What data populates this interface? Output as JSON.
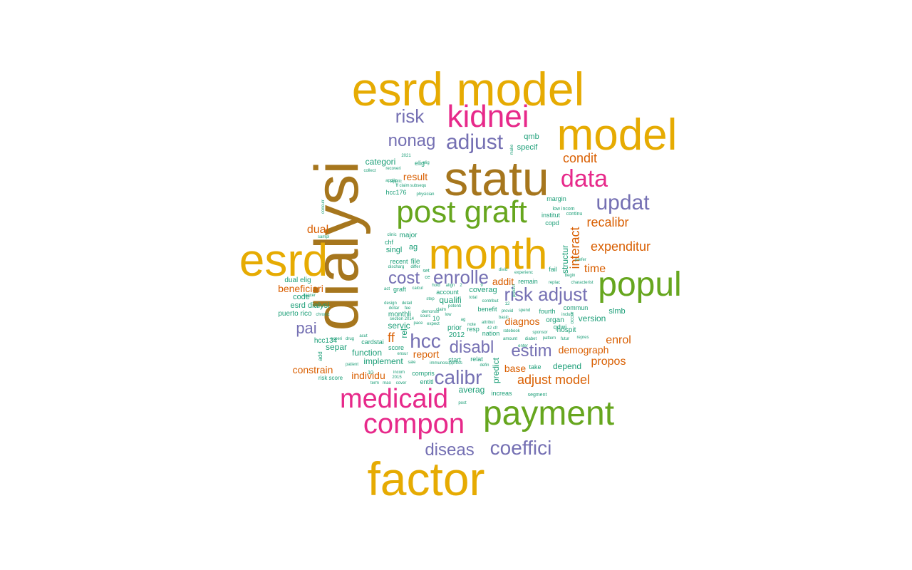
{
  "colors": {
    "gold": "#E6AB02",
    "olive": "#A6761D",
    "magenta": "#E7298A",
    "green": "#66A61E",
    "purple": "#7570B3",
    "orange": "#D95F02",
    "teal": "#1B9E77"
  },
  "words": [
    {
      "text": "esrd model",
      "color": "gold"
    },
    {
      "text": "model",
      "color": "gold"
    },
    {
      "text": "statu",
      "color": "olive"
    },
    {
      "text": "dialysi",
      "color": "olive"
    },
    {
      "text": "kidnei",
      "color": "magenta"
    },
    {
      "text": "month",
      "color": "gold"
    },
    {
      "text": "esrd",
      "color": "gold"
    },
    {
      "text": "factor",
      "color": "gold"
    },
    {
      "text": "post graft",
      "color": "green"
    },
    {
      "text": "payment",
      "color": "green"
    },
    {
      "text": "popul",
      "color": "green"
    },
    {
      "text": "data",
      "color": "magenta"
    },
    {
      "text": "compon",
      "color": "magenta"
    },
    {
      "text": "medicaid",
      "color": "magenta"
    },
    {
      "text": "risk",
      "color": "purple"
    },
    {
      "text": "nonag",
      "color": "purple"
    },
    {
      "text": "adjust",
      "color": "purple"
    },
    {
      "text": "updat",
      "color": "purple"
    },
    {
      "text": "cost",
      "color": "purple"
    },
    {
      "text": "enrolle",
      "color": "purple"
    },
    {
      "text": "risk adjust",
      "color": "purple"
    },
    {
      "text": "hcc",
      "color": "purple"
    },
    {
      "text": "disabl",
      "color": "purple"
    },
    {
      "text": "estim",
      "color": "purple"
    },
    {
      "text": "calibr",
      "color": "purple"
    },
    {
      "text": "diseas",
      "color": "purple"
    },
    {
      "text": "coeffici",
      "color": "purple"
    },
    {
      "text": "pai",
      "color": "purple"
    },
    {
      "text": "interact",
      "color": "orange"
    },
    {
      "text": "condit",
      "color": "orange"
    },
    {
      "text": "recalibr",
      "color": "orange"
    },
    {
      "text": "expenditur",
      "color": "orange"
    },
    {
      "text": "time",
      "color": "orange"
    },
    {
      "text": "result",
      "color": "orange"
    },
    {
      "text": "dual",
      "color": "orange"
    },
    {
      "text": "beneficiari",
      "color": "orange"
    },
    {
      "text": "ff",
      "color": "orange"
    },
    {
      "text": "addit",
      "color": "orange"
    },
    {
      "text": "diagnos",
      "color": "orange"
    },
    {
      "text": "demograph",
      "color": "orange"
    },
    {
      "text": "enrol",
      "color": "orange"
    },
    {
      "text": "propos",
      "color": "orange"
    },
    {
      "text": "report",
      "color": "orange"
    },
    {
      "text": "constrain",
      "color": "orange"
    },
    {
      "text": "individu",
      "color": "orange"
    },
    {
      "text": "base",
      "color": "orange"
    },
    {
      "text": "adjust model",
      "color": "orange"
    },
    {
      "text": "qmb",
      "color": "teal"
    },
    {
      "text": "specif",
      "color": "teal"
    },
    {
      "text": "categori",
      "color": "teal"
    },
    {
      "text": "elig",
      "color": "teal"
    },
    {
      "text": "hcc176",
      "color": "teal"
    },
    {
      "text": "margin",
      "color": "teal"
    },
    {
      "text": "institut",
      "color": "teal"
    },
    {
      "text": "copd",
      "color": "teal"
    },
    {
      "text": "major",
      "color": "teal"
    },
    {
      "text": "ag",
      "color": "teal"
    },
    {
      "text": "singl",
      "color": "teal"
    },
    {
      "text": "chf",
      "color": "teal"
    },
    {
      "text": "file",
      "color": "teal"
    },
    {
      "text": "recent",
      "color": "teal"
    },
    {
      "text": "structur",
      "color": "teal"
    },
    {
      "text": "dual elig",
      "color": "teal"
    },
    {
      "text": "code",
      "color": "teal"
    },
    {
      "text": "graft",
      "color": "teal"
    },
    {
      "text": "esrd dialysi",
      "color": "teal"
    },
    {
      "text": "puerto rico",
      "color": "teal"
    },
    {
      "text": "account",
      "color": "teal"
    },
    {
      "text": "qualifi",
      "color": "teal"
    },
    {
      "text": "coverag",
      "color": "teal"
    },
    {
      "text": "remain",
      "color": "teal"
    },
    {
      "text": "fourth",
      "color": "teal"
    },
    {
      "text": "commun",
      "color": "teal"
    },
    {
      "text": "version",
      "color": "teal"
    },
    {
      "text": "benefit",
      "color": "teal"
    },
    {
      "text": "monthli",
      "color": "teal"
    },
    {
      "text": "servic",
      "color": "teal"
    },
    {
      "text": "prior",
      "color": "teal"
    },
    {
      "text": "2012",
      "color": "teal"
    },
    {
      "text": "nation",
      "color": "teal"
    },
    {
      "text": "organ",
      "color": "teal"
    },
    {
      "text": "hospit",
      "color": "teal"
    },
    {
      "text": "slmb",
      "color": "teal"
    },
    {
      "text": "qdwi",
      "color": "teal"
    },
    {
      "text": "hcc134",
      "color": "teal"
    },
    {
      "text": "separ",
      "color": "teal"
    },
    {
      "text": "cardstai",
      "color": "teal"
    },
    {
      "text": "score",
      "color": "teal"
    },
    {
      "text": "function",
      "color": "teal"
    },
    {
      "text": "implement",
      "color": "teal"
    },
    {
      "text": "relat",
      "color": "teal"
    },
    {
      "text": "start",
      "color": "teal"
    },
    {
      "text": "predict",
      "color": "teal"
    },
    {
      "text": "take",
      "color": "teal"
    },
    {
      "text": "depend",
      "color": "teal"
    },
    {
      "text": "compris",
      "color": "teal"
    },
    {
      "text": "entitl",
      "color": "teal"
    },
    {
      "text": "averag",
      "color": "teal"
    },
    {
      "text": "increas",
      "color": "teal"
    },
    {
      "text": "segment",
      "color": "teal"
    },
    {
      "text": "risk score",
      "color": "teal"
    },
    {
      "text": "add",
      "color": "teal"
    },
    {
      "text": "10",
      "color": "teal"
    },
    {
      "text": "resp",
      "color": "teal"
    },
    {
      "text": "rel",
      "color": "teal"
    },
    {
      "text": "10",
      "color": "teal"
    },
    {
      "text": "low incom",
      "color": "teal"
    },
    {
      "text": "continu",
      "color": "teal"
    },
    {
      "text": "2021",
      "color": "teal"
    },
    {
      "text": "recoveri",
      "color": "teal"
    },
    {
      "text": "collect",
      "color": "teal"
    },
    {
      "text": "applic",
      "color": "teal"
    },
    {
      "text": "ff claim",
      "color": "teal"
    },
    {
      "text": "subsequ",
      "color": "teal"
    },
    {
      "text": "physician",
      "color": "teal"
    },
    {
      "text": "concurr",
      "color": "teal"
    },
    {
      "text": "sampl",
      "color": "teal"
    },
    {
      "text": "clinic",
      "color": "teal"
    },
    {
      "text": "discharg",
      "color": "teal"
    },
    {
      "text": "differ",
      "color": "teal"
    },
    {
      "text": "set",
      "color": "teal"
    },
    {
      "text": "divid",
      "color": "teal"
    },
    {
      "text": "experienc",
      "color": "teal"
    },
    {
      "text": "replac",
      "color": "teal"
    },
    {
      "text": "characterist",
      "color": "teal"
    },
    {
      "text": "prefer",
      "color": "teal"
    },
    {
      "text": "begin",
      "color": "teal"
    },
    {
      "text": "cancer",
      "color": "teal"
    },
    {
      "text": "chronic",
      "color": "teal"
    },
    {
      "text": "act",
      "color": "teal"
    },
    {
      "text": "design",
      "color": "teal"
    },
    {
      "text": "detail",
      "color": "teal"
    },
    {
      "text": "dollar",
      "color": "teal"
    },
    {
      "text": "fee",
      "color": "teal"
    },
    {
      "text": "section 2014",
      "color": "teal"
    },
    {
      "text": "pace",
      "color": "teal"
    },
    {
      "text": "expect",
      "color": "teal"
    },
    {
      "text": "experi",
      "color": "teal"
    },
    {
      "text": "drug",
      "color": "teal"
    },
    {
      "text": "acut",
      "color": "teal"
    },
    {
      "text": "ensur",
      "color": "teal"
    },
    {
      "text": "sale",
      "color": "teal"
    },
    {
      "text": "immunosuppress",
      "color": "teal"
    },
    {
      "text": "defin",
      "color": "teal"
    },
    {
      "text": "patient",
      "color": "teal"
    },
    {
      "text": "2015",
      "color": "teal"
    },
    {
      "text": "incom",
      "color": "teal"
    },
    {
      "text": "term",
      "color": "teal"
    },
    {
      "text": "mao",
      "color": "teal"
    },
    {
      "text": "cover",
      "color": "teal"
    },
    {
      "text": "post",
      "color": "teal"
    },
    {
      "text": "amount",
      "color": "teal"
    },
    {
      "text": "diabet",
      "color": "teal"
    },
    {
      "text": "ratebook",
      "color": "teal"
    },
    {
      "text": "sponsor",
      "color": "teal"
    },
    {
      "text": "enter",
      "color": "teal"
    },
    {
      "text": "pattern",
      "color": "teal"
    },
    {
      "text": "spend",
      "color": "teal"
    },
    {
      "text": "includ",
      "color": "teal"
    },
    {
      "text": "provid",
      "color": "teal"
    },
    {
      "text": "basic",
      "color": "teal"
    },
    {
      "text": "attribut",
      "color": "teal"
    },
    {
      "text": "futur",
      "color": "teal"
    },
    {
      "text": "repres",
      "color": "teal"
    },
    {
      "text": "note",
      "color": "teal"
    },
    {
      "text": "hold",
      "color": "teal"
    },
    {
      "text": "align",
      "color": "teal"
    },
    {
      "text": "claim",
      "color": "teal"
    },
    {
      "text": "potenti",
      "color": "teal"
    },
    {
      "text": "step",
      "color": "teal"
    },
    {
      "text": "calcul",
      "color": "teal"
    },
    {
      "text": "demonstr",
      "color": "teal"
    },
    {
      "text": "sourc",
      "color": "teal"
    },
    {
      "text": "total",
      "color": "teal"
    },
    {
      "text": "contribut",
      "color": "teal"
    },
    {
      "text": "fail",
      "color": "teal"
    },
    {
      "text": "occur",
      "color": "teal"
    },
    {
      "text": "make",
      "color": "teal"
    },
    {
      "text": "ce",
      "color": "teal"
    },
    {
      "text": "42 cfr",
      "color": "teal"
    },
    {
      "text": "12",
      "color": "teal"
    },
    {
      "text": "applic",
      "color": "teal"
    },
    {
      "text": "2",
      "color": "teal"
    },
    {
      "text": "9",
      "color": "teal"
    },
    {
      "text": "low",
      "color": "teal"
    },
    {
      "text": "predict",
      "color": "teal"
    },
    {
      "text": "elig",
      "color": "teal"
    },
    {
      "text": "ag",
      "color": "teal"
    }
  ]
}
